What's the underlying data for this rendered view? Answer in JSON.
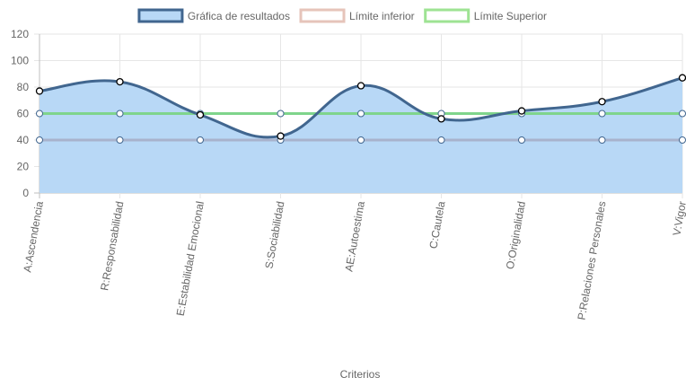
{
  "chart_data": {
    "type": "line",
    "title": "",
    "xlabel": "Criterios",
    "ylabel": "",
    "ylim": [
      0,
      120
    ],
    "yticks": [
      0,
      20,
      40,
      60,
      80,
      100,
      120
    ],
    "grid": true,
    "legend_position": "top",
    "categories": [
      "A:Ascendencia",
      "R:Responsabilidad",
      "E:Estabilidad Emocional",
      "S:Sociabilidad",
      "AE:Autoestima",
      "C:Cautela",
      "O:Originalidad",
      "P:Relaciones Personales",
      "V:Vigor"
    ],
    "series": [
      {
        "name": "Gráfica de resultados",
        "values": [
          77,
          84,
          59,
          43,
          81,
          56,
          62,
          69,
          87
        ],
        "color": "#41668f",
        "fill": "#b8d8f6",
        "filled": true,
        "smooth": true
      },
      {
        "name": "Límite inferior",
        "values": [
          40,
          40,
          40,
          40,
          40,
          40,
          40,
          40,
          40
        ],
        "color": "#a8b2cc",
        "legend_color": "#e6c4ba",
        "filled": false,
        "smooth": false
      },
      {
        "name": "Límite Superior",
        "values": [
          60,
          60,
          60,
          60,
          60,
          60,
          60,
          60,
          60
        ],
        "color": "#7fd48c",
        "legend_color": "#9ee393",
        "filled": false,
        "smooth": false
      }
    ]
  }
}
